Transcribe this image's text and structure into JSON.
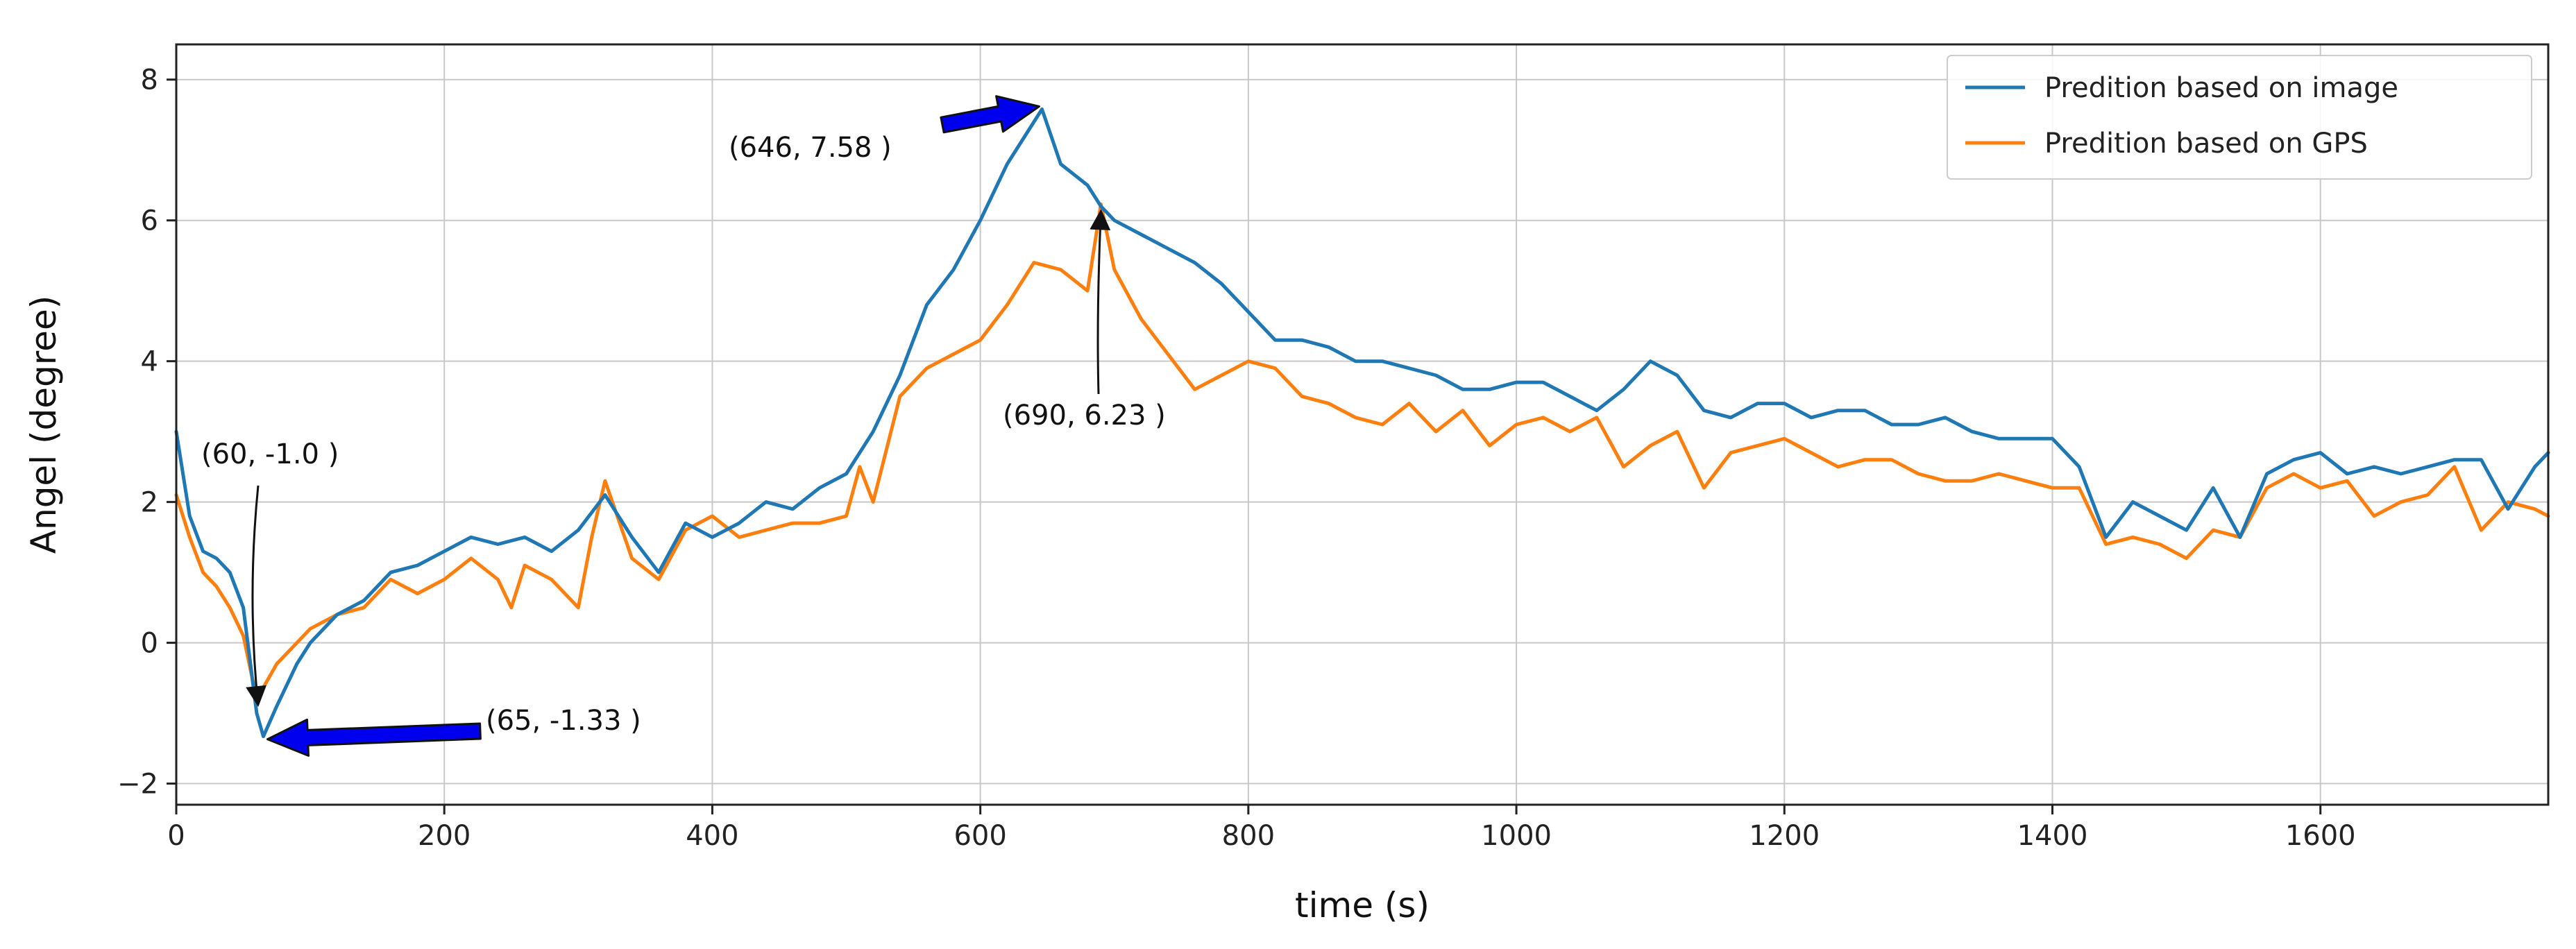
{
  "chart_data": {
    "type": "line",
    "xlabel": "time (s)",
    "ylabel": "Angel (degree)",
    "xlim": [
      0,
      1770
    ],
    "ylim": [
      -2.3,
      8.5
    ],
    "xticks": [
      0,
      200,
      400,
      600,
      800,
      1000,
      1200,
      1400,
      1600
    ],
    "yticks": [
      -2,
      0,
      2,
      4,
      6,
      8
    ],
    "grid": true,
    "legend_position": "top-right",
    "series": [
      {
        "name": "Predition based on image",
        "color": "#1f77b4",
        "x": [
          0,
          10,
          20,
          30,
          40,
          50,
          60,
          65,
          75,
          90,
          100,
          120,
          140,
          160,
          180,
          200,
          220,
          240,
          260,
          280,
          300,
          320,
          340,
          360,
          380,
          400,
          420,
          440,
          460,
          480,
          500,
          520,
          540,
          560,
          580,
          600,
          620,
          646,
          660,
          680,
          690,
          700,
          720,
          740,
          760,
          780,
          800,
          820,
          840,
          860,
          880,
          900,
          920,
          940,
          960,
          980,
          1000,
          1020,
          1040,
          1060,
          1080,
          1100,
          1120,
          1140,
          1160,
          1180,
          1200,
          1220,
          1240,
          1260,
          1280,
          1300,
          1320,
          1340,
          1360,
          1380,
          1400,
          1420,
          1440,
          1460,
          1480,
          1500,
          1520,
          1540,
          1560,
          1580,
          1600,
          1620,
          1640,
          1660,
          1680,
          1700,
          1720,
          1740,
          1760,
          1770
        ],
        "y": [
          3.0,
          1.8,
          1.3,
          1.2,
          1.0,
          0.5,
          -1.0,
          -1.33,
          -0.9,
          -0.3,
          0.0,
          0.4,
          0.6,
          1.0,
          1.1,
          1.3,
          1.5,
          1.4,
          1.5,
          1.3,
          1.6,
          2.1,
          1.5,
          1.0,
          1.7,
          1.5,
          1.7,
          2.0,
          1.9,
          2.2,
          2.4,
          3.0,
          3.8,
          4.8,
          5.3,
          6.0,
          6.8,
          7.58,
          6.8,
          6.5,
          6.2,
          6.0,
          5.8,
          5.6,
          5.4,
          5.1,
          4.7,
          4.3,
          4.3,
          4.2,
          4.0,
          4.0,
          3.9,
          3.8,
          3.6,
          3.6,
          3.7,
          3.7,
          3.5,
          3.3,
          3.6,
          4.0,
          3.8,
          3.3,
          3.2,
          3.4,
          3.4,
          3.2,
          3.3,
          3.3,
          3.1,
          3.1,
          3.2,
          3.0,
          2.9,
          2.9,
          2.9,
          2.5,
          1.5,
          2.0,
          1.8,
          1.6,
          2.2,
          1.5,
          2.4,
          2.6,
          2.7,
          2.4,
          2.5,
          2.4,
          2.5,
          2.6,
          2.6,
          1.9,
          2.5,
          2.7
        ]
      },
      {
        "name": "Predition based on GPS",
        "color": "#ff7f0e",
        "x": [
          0,
          10,
          20,
          30,
          40,
          50,
          60,
          75,
          90,
          100,
          120,
          140,
          160,
          180,
          200,
          220,
          240,
          250,
          260,
          280,
          300,
          310,
          320,
          340,
          360,
          380,
          400,
          420,
          440,
          460,
          480,
          500,
          510,
          520,
          540,
          560,
          580,
          600,
          620,
          640,
          660,
          680,
          690,
          700,
          720,
          740,
          760,
          780,
          800,
          820,
          840,
          860,
          880,
          900,
          920,
          940,
          960,
          980,
          1000,
          1020,
          1040,
          1060,
          1080,
          1100,
          1120,
          1140,
          1160,
          1180,
          1200,
          1220,
          1240,
          1260,
          1280,
          1300,
          1320,
          1340,
          1360,
          1380,
          1400,
          1420,
          1440,
          1460,
          1480,
          1500,
          1520,
          1540,
          1560,
          1580,
          1600,
          1620,
          1640,
          1660,
          1680,
          1700,
          1720,
          1740,
          1760,
          1770
        ],
        "y": [
          2.1,
          1.5,
          1.0,
          0.8,
          0.5,
          0.1,
          -0.8,
          -0.3,
          0.0,
          0.2,
          0.4,
          0.5,
          0.9,
          0.7,
          0.9,
          1.2,
          0.9,
          0.5,
          1.1,
          0.9,
          0.5,
          1.5,
          2.3,
          1.2,
          0.9,
          1.6,
          1.8,
          1.5,
          1.6,
          1.7,
          1.7,
          1.8,
          2.5,
          2.0,
          3.5,
          3.9,
          4.1,
          4.3,
          4.8,
          5.4,
          5.3,
          5.0,
          6.23,
          5.3,
          4.6,
          4.1,
          3.6,
          3.8,
          4.0,
          3.9,
          3.5,
          3.4,
          3.2,
          3.1,
          3.4,
          3.0,
          3.3,
          2.8,
          3.1,
          3.2,
          3.0,
          3.2,
          2.5,
          2.8,
          3.0,
          2.2,
          2.7,
          2.8,
          2.9,
          2.7,
          2.5,
          2.6,
          2.6,
          2.4,
          2.3,
          2.3,
          2.4,
          2.3,
          2.2,
          2.2,
          1.4,
          1.5,
          1.4,
          1.2,
          1.6,
          1.5,
          2.2,
          2.4,
          2.2,
          2.3,
          1.8,
          2.0,
          2.1,
          2.5,
          1.6,
          2.0,
          1.9,
          1.8
        ]
      }
    ],
    "annotations": [
      {
        "text": "(60, -1.0 )",
        "x": 60,
        "y": -1.0,
        "arrow": "thin"
      },
      {
        "text": "(65, -1.33 )",
        "x": 65,
        "y": -1.33,
        "arrow": "block"
      },
      {
        "text": "(646, 7.58 )",
        "x": 646,
        "y": 7.58,
        "arrow": "block"
      },
      {
        "text": "(690, 6.23 )",
        "x": 690,
        "y": 6.23,
        "arrow": "thin"
      }
    ]
  }
}
